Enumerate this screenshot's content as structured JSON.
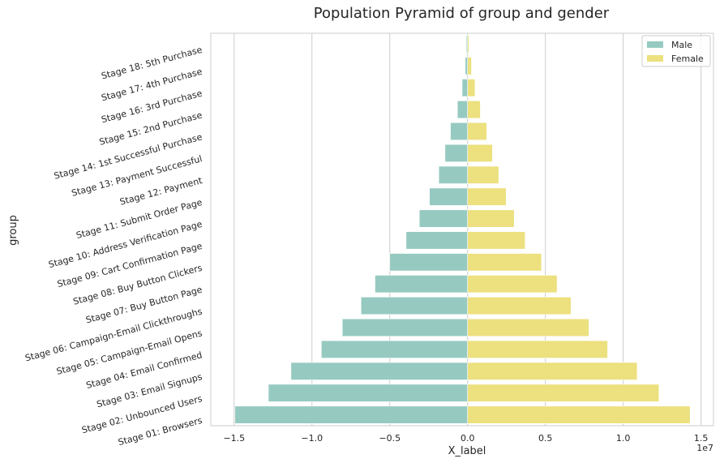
{
  "chart_data": {
    "type": "bar",
    "orientation": "horizontal",
    "title": "Population Pyramid of group and gender",
    "xlabel": "X_label",
    "ylabel": "group",
    "x_offset_text": "1e7",
    "xlim": [
      -16500000,
      15800000
    ],
    "xticks": [
      {
        "value": -15000000,
        "label": "−1.5"
      },
      {
        "value": -10000000,
        "label": "−1.0"
      },
      {
        "value": -5000000,
        "label": "−0.5"
      },
      {
        "value": 0,
        "label": "0.0"
      },
      {
        "value": 5000000,
        "label": "0.5"
      },
      {
        "value": 10000000,
        "label": "1.0"
      },
      {
        "value": 15000000,
        "label": "1.5"
      }
    ],
    "grid": "vertical",
    "legend_position": "top-right",
    "categories": [
      "Stage 18: 5th Purchase",
      "Stage 17: 4th Purchase",
      "Stage 16: 3rd Purchase",
      "Stage 15: 2nd Purchase",
      "Stage 14: 1st Successful Purchase",
      "Stage 13: Payment Successful",
      "Stage 12: Payment",
      "Stage 11: Submit Order Page",
      "Stage 10: Address Verification Page",
      "Stage 09: Cart Confirmation Page",
      "Stage 08: Buy Button Clickers",
      "Stage 07: Buy Button Page",
      "Stage 06: Campaign-Email Clickthroughs",
      "Stage 05: Campaign-Email Opens",
      "Stage 04: Email Confirmed",
      "Stage 03: Email Signups",
      "Stage 02: Unbounced Users",
      "Stage 01: Browsers"
    ],
    "series": [
      {
        "name": "Male",
        "color": "#96cac1",
        "values": [
          -80000,
          -150000,
          -350000,
          -650000,
          -1100000,
          -1450000,
          -1850000,
          -2450000,
          -3100000,
          -3950000,
          -5000000,
          -5950000,
          -6850000,
          -8050000,
          -9400000,
          -11350000,
          -12800000,
          -14950000
        ]
      },
      {
        "name": "Female",
        "color": "#ece07f",
        "values": [
          80000,
          250000,
          480000,
          820000,
          1230000,
          1600000,
          2000000,
          2480000,
          3000000,
          3700000,
          4750000,
          5750000,
          6650000,
          7800000,
          9000000,
          10900000,
          12300000,
          14300000
        ]
      }
    ]
  }
}
